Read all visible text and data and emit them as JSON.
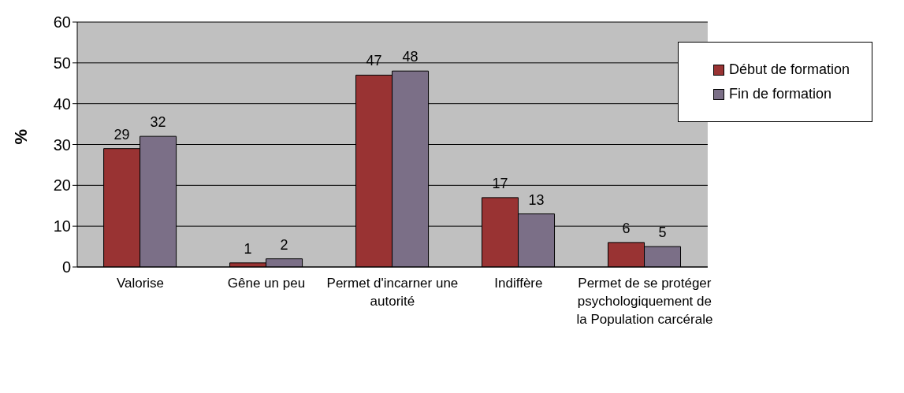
{
  "chart_data": {
    "type": "bar",
    "ylabel": "%",
    "categories": [
      "Valorise",
      "Gêne un peu",
      "Permet d'incarner une autorité",
      "Indiffère",
      "Permet de se protéger psychologiquement de la Population carcérale"
    ],
    "series": [
      {
        "name": "Début de formation",
        "color": "#993333",
        "values": [
          29,
          1,
          47,
          17,
          6
        ]
      },
      {
        "name": "Fin de formation",
        "color": "#7b6f87",
        "values": [
          32,
          2,
          48,
          13,
          5
        ]
      }
    ],
    "ylim": [
      0,
      60
    ],
    "yticks": [
      0,
      10,
      20,
      30,
      40,
      50,
      60
    ],
    "grid": "y",
    "legend": "top right",
    "data_labels": true
  }
}
